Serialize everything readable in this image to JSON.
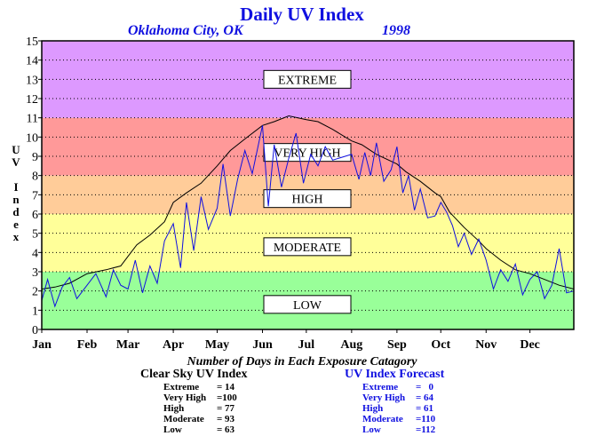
{
  "title": "Daily UV Index",
  "location": "Oklahoma City, OK",
  "year": "1998",
  "ylabel_chars": [
    "U",
    "V",
    "",
    "I",
    "n",
    "d",
    "e",
    "x"
  ],
  "category_caption": "Number of Days in Each Exposure Catagory",
  "clear_sky": {
    "heading": "Clear Sky UV Index",
    "rows": [
      {
        "label": "Extreme",
        "value": "= 14"
      },
      {
        "label": "Very High",
        "value": "=100"
      },
      {
        "label": "High",
        "value": "= 77"
      },
      {
        "label": "Moderate",
        "value": "= 93"
      },
      {
        "label": "Low",
        "value": "= 63"
      }
    ]
  },
  "forecast": {
    "heading": "UV Index Forecast",
    "rows": [
      {
        "label": "Extreme",
        "value": "=   0"
      },
      {
        "label": "Very High",
        "value": "= 64"
      },
      {
        "label": "High",
        "value": "= 61"
      },
      {
        "label": "Moderate",
        "value": "=110"
      },
      {
        "label": "Low",
        "value": "=112"
      }
    ]
  },
  "colors": {
    "title": "#1010e0",
    "forecast": "#1010e0",
    "clear_sky": "#000000"
  },
  "chart_data": {
    "type": "line",
    "ylim": [
      0,
      15
    ],
    "yticks": [
      0,
      1,
      2,
      3,
      4,
      5,
      6,
      7,
      8,
      9,
      10,
      11,
      12,
      13,
      14,
      15
    ],
    "grid": true,
    "xlim": [
      1,
      365
    ],
    "month_labels": [
      "Jan",
      "Feb",
      "Mar",
      "Apr",
      "May",
      "Jun",
      "Jul",
      "Aug",
      "Sep",
      "Oct",
      "Nov",
      "Dec"
    ],
    "month_start_days": [
      1,
      32,
      60,
      91,
      121,
      152,
      182,
      213,
      244,
      274,
      305,
      335
    ],
    "bands": [
      {
        "name": "LOW",
        "from": 0,
        "to": 3,
        "color": "#99ff99"
      },
      {
        "name": "MODERATE",
        "from": 3,
        "to": 6,
        "color": "#ffff99"
      },
      {
        "name": "HIGH",
        "from": 6,
        "to": 8,
        "color": "#ffcc99"
      },
      {
        "name": "VERY HIGH",
        "from": 8,
        "to": 11,
        "color": "#ff9999"
      },
      {
        "name": "EXTREME",
        "from": 11,
        "to": 15,
        "color": "#dd99ff"
      }
    ],
    "band_labels": [
      {
        "text": "EXTREME",
        "value": 13
      },
      {
        "text": "VERY HIGH",
        "value": 9.2
      },
      {
        "text": "HIGH",
        "value": 6.8
      },
      {
        "text": "MODERATE",
        "value": 4.3
      },
      {
        "text": "LOW",
        "value": 1.3
      }
    ],
    "series": [
      {
        "key": "clear_sky",
        "color": "#000000",
        "days": [
          1,
          10,
          20,
          32,
          45,
          55,
          60,
          66,
          75,
          85,
          91,
          100,
          110,
          121,
          130,
          140,
          152,
          160,
          170,
          182,
          190,
          200,
          213,
          220,
          230,
          244,
          250,
          260,
          270,
          274,
          280,
          290,
          300,
          305,
          315,
          325,
          335,
          345,
          355,
          360,
          365
        ],
        "values": [
          2.1,
          2.2,
          2.4,
          2.9,
          3.1,
          3.3,
          3.8,
          4.4,
          4.9,
          5.6,
          6.6,
          7.1,
          7.6,
          8.5,
          9.3,
          9.9,
          10.6,
          10.8,
          11.1,
          10.9,
          10.8,
          10.4,
          9.8,
          9.6,
          9.1,
          8.6,
          8.2,
          7.7,
          7.1,
          6.9,
          6.1,
          5.3,
          4.6,
          4.2,
          3.6,
          3.1,
          2.9,
          2.6,
          2.3,
          2.2,
          2.1
        ]
      },
      {
        "key": "forecast",
        "color": "#1010e0",
        "days": [
          1,
          5,
          10,
          15,
          20,
          25,
          32,
          38,
          45,
          50,
          55,
          60,
          65,
          70,
          75,
          80,
          85,
          91,
          96,
          100,
          105,
          110,
          115,
          121,
          125,
          130,
          135,
          140,
          145,
          152,
          156,
          160,
          165,
          170,
          175,
          180,
          185,
          190,
          195,
          200,
          213,
          218,
          222,
          226,
          230,
          235,
          240,
          244,
          248,
          252,
          256,
          260,
          265,
          270,
          274,
          278,
          282,
          286,
          290,
          295,
          300,
          305,
          310,
          315,
          320,
          325,
          330,
          335,
          340,
          345,
          350,
          355,
          360,
          365
        ],
        "values": [
          1.5,
          2.6,
          1.2,
          2.2,
          2.7,
          1.6,
          2.3,
          2.9,
          1.7,
          3.1,
          2.3,
          2.1,
          3.6,
          1.9,
          3.3,
          2.4,
          4.6,
          5.5,
          3.2,
          6.6,
          4.1,
          6.9,
          5.2,
          6.3,
          8.6,
          5.9,
          7.8,
          9.3,
          8.1,
          10.6,
          6.4,
          9.6,
          7.4,
          8.9,
          10.2,
          7.6,
          9.1,
          8.5,
          9.5,
          8.8,
          9.1,
          7.8,
          9.2,
          8.0,
          9.7,
          7.7,
          8.3,
          9.5,
          7.1,
          8.0,
          6.2,
          7.3,
          5.8,
          5.9,
          6.6,
          6.1,
          5.4,
          4.3,
          5.0,
          3.9,
          4.7,
          3.6,
          2.1,
          3.1,
          2.5,
          3.4,
          1.8,
          2.6,
          3.0,
          1.6,
          2.3,
          4.2,
          1.9,
          2.0
        ]
      }
    ]
  }
}
